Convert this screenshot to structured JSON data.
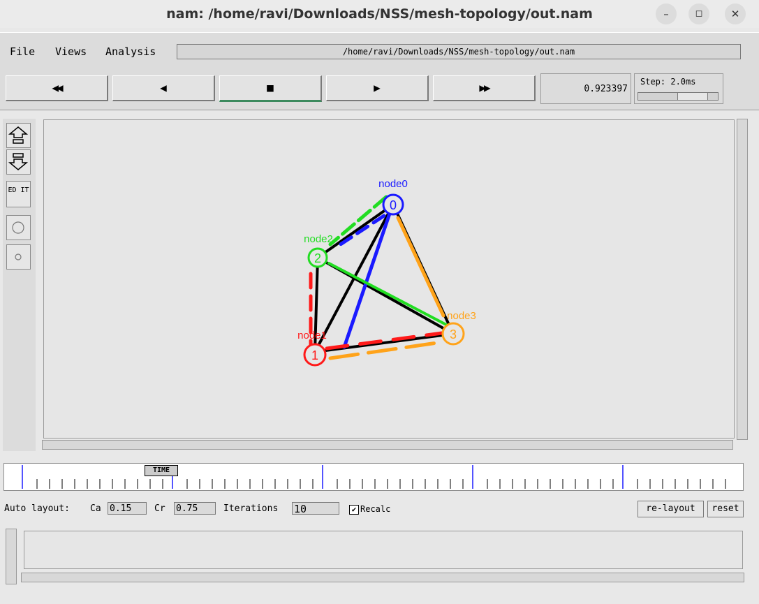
{
  "window": {
    "title": "nam: /home/ravi/Downloads/NSS/mesh-topology/out.nam",
    "minimize": "–",
    "restore": "◻",
    "close": "✕"
  },
  "menu": {
    "file": "File",
    "views": "Views",
    "analysis": "Analysis",
    "path": "/home/ravi/Downloads/NSS/mesh-topology/out.nam"
  },
  "controls": {
    "rewind": "◀◀",
    "back": "◀",
    "stop": "■",
    "play": "▶",
    "fastforward": "▶▶",
    "time": "0.923397",
    "step_label": "Step: 2.0ms"
  },
  "tools": {
    "zoom_in": "⇑",
    "zoom_out": "⇓",
    "edit": "ED IT"
  },
  "topology": {
    "nodes": [
      {
        "id": "0",
        "label": "node0",
        "color": "#1a1aff"
      },
      {
        "id": "1",
        "label": "node1",
        "color": "#ff1a1a"
      },
      {
        "id": "2",
        "label": "node2",
        "color": "#22dd22"
      },
      {
        "id": "3",
        "label": "node3",
        "color": "#ffa31a"
      }
    ]
  },
  "timeline": {
    "marker": "TIME"
  },
  "layout": {
    "label": "Auto layout:",
    "ca_label": "Ca",
    "ca_value": "0.15",
    "cr_label": "Cr",
    "cr_value": "0.75",
    "iter_label": "Iterations",
    "iter_value": "10",
    "recalc_label": "Recalc",
    "relayout": "re-layout",
    "reset": "reset"
  }
}
